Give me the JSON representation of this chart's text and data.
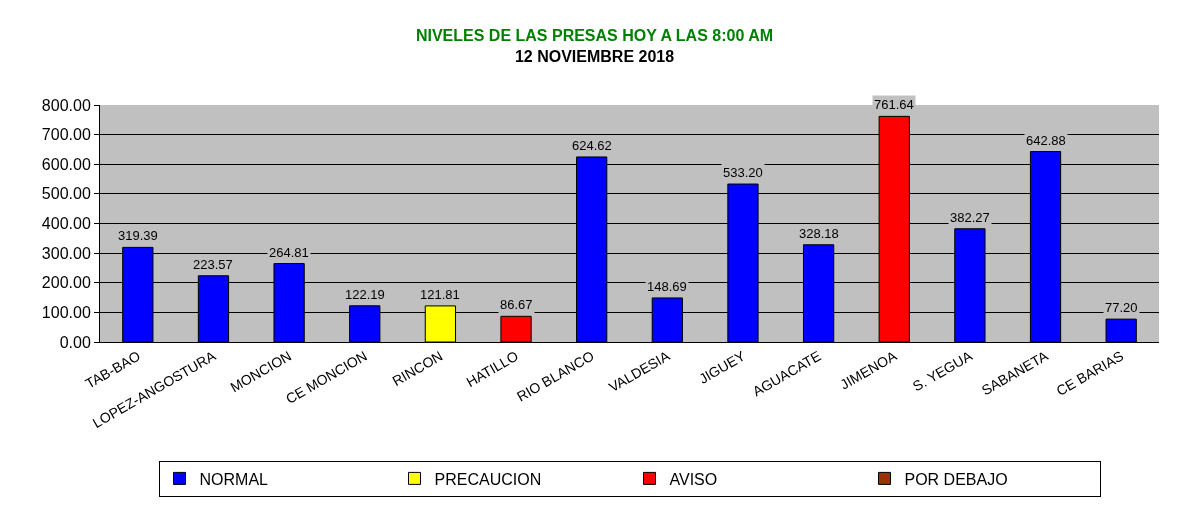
{
  "chart_data": {
    "type": "bar",
    "title": "NIVELES DE LAS PRESAS HOY A LAS 8:00 AM",
    "subtitle": "12 NOVIEMBRE 2018",
    "categories": [
      "TAB-BAO",
      "LOPEZ-ANGOSTURA",
      "MONCION",
      "CE MONCION",
      "RINCON",
      "HATILLO",
      "RIO BLANCO",
      "VALDESIA",
      "JIGUEY",
      "AGUACATE",
      "JIMENOA",
      "S. YEGUA",
      "SABANETA",
      "CE BARIAS"
    ],
    "series": [
      {
        "name": "NORMAL",
        "color": "#0000ff",
        "values": [
          319.39,
          223.57,
          264.81,
          122.19,
          null,
          null,
          624.62,
          148.69,
          533.2,
          328.18,
          null,
          382.27,
          642.88,
          77.2
        ],
        "value_labels": [
          "319.39",
          "223.57",
          "264.81",
          "122.19",
          null,
          null,
          "624.62",
          "148.69",
          "533.20",
          "328.18",
          null,
          "382.27",
          "642.88",
          "77.20"
        ]
      },
      {
        "name": "PRECAUCION",
        "color": "#ffff00",
        "values": [
          null,
          null,
          null,
          null,
          121.81,
          null,
          null,
          null,
          null,
          null,
          null,
          null,
          null,
          null
        ],
        "value_labels": [
          null,
          null,
          null,
          null,
          "121.81",
          null,
          null,
          null,
          null,
          null,
          null,
          null,
          null,
          null
        ]
      },
      {
        "name": "AVISO",
        "color": "#ff0000",
        "values": [
          null,
          null,
          null,
          null,
          null,
          86.67,
          null,
          null,
          null,
          null,
          761.64,
          null,
          null,
          null
        ],
        "value_labels": [
          null,
          null,
          null,
          null,
          null,
          "86.67",
          null,
          null,
          null,
          null,
          "761.64",
          null,
          null,
          null
        ]
      },
      {
        "name": "POR DEBAJO",
        "color": "#993300",
        "values": [
          null,
          null,
          null,
          null,
          null,
          null,
          null,
          null,
          null,
          null,
          null,
          null,
          null,
          null
        ]
      }
    ],
    "ylim": [
      0,
      800
    ],
    "yticks": [
      {
        "value": 0,
        "label": "0.00"
      },
      {
        "value": 100,
        "label": "100.00"
      },
      {
        "value": 200,
        "label": "200.00"
      },
      {
        "value": 300,
        "label": "300.00"
      },
      {
        "value": 400,
        "label": "400.00"
      },
      {
        "value": 500,
        "label": "500.00"
      },
      {
        "value": 600,
        "label": "600.00"
      },
      {
        "value": 700,
        "label": "700.00"
      },
      {
        "value": 800,
        "label": "800.00"
      }
    ],
    "grid": "y",
    "legend": "bottom"
  }
}
